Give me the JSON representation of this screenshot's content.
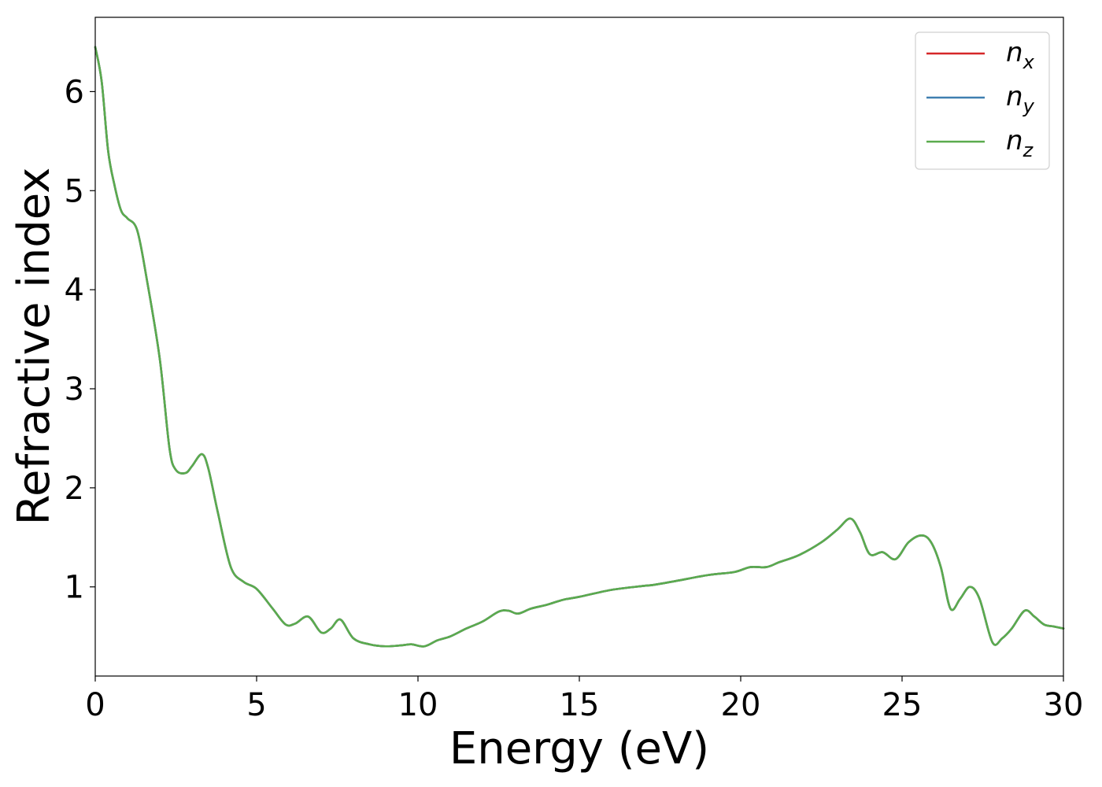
{
  "chart_data": {
    "type": "line",
    "xlabel": "Energy (eV)",
    "ylabel": "Refractive index",
    "xlim": [
      0,
      30
    ],
    "ylim": [
      0.1,
      6.75
    ],
    "xticks": [
      0,
      5,
      10,
      15,
      20,
      25,
      30
    ],
    "yticks": [
      1,
      2,
      3,
      4,
      5,
      6
    ],
    "grid": false,
    "legend_position": "top-right",
    "series": [
      {
        "name": "n_x",
        "legend_base": "n",
        "legend_sub": "x",
        "color": "#d62728",
        "points": [
          [
            0,
            6.45
          ],
          [
            0.2,
            6.1
          ],
          [
            0.4,
            5.4
          ],
          [
            0.6,
            5.05
          ],
          [
            0.8,
            4.8
          ],
          [
            1.0,
            4.72
          ],
          [
            1.3,
            4.6
          ],
          [
            1.6,
            4.1
          ],
          [
            2.0,
            3.3
          ],
          [
            2.3,
            2.4
          ],
          [
            2.5,
            2.18
          ],
          [
            2.8,
            2.15
          ],
          [
            3.0,
            2.22
          ],
          [
            3.3,
            2.34
          ],
          [
            3.5,
            2.2
          ],
          [
            3.8,
            1.75
          ],
          [
            4.2,
            1.2
          ],
          [
            4.6,
            1.05
          ],
          [
            5.0,
            0.98
          ],
          [
            5.5,
            0.78
          ],
          [
            5.9,
            0.62
          ],
          [
            6.2,
            0.63
          ],
          [
            6.6,
            0.7
          ],
          [
            7.0,
            0.54
          ],
          [
            7.3,
            0.58
          ],
          [
            7.6,
            0.67
          ],
          [
            8.0,
            0.48
          ],
          [
            8.5,
            0.42
          ],
          [
            9.0,
            0.4
          ],
          [
            9.5,
            0.41
          ],
          [
            9.8,
            0.42
          ],
          [
            10.2,
            0.4
          ],
          [
            10.6,
            0.46
          ],
          [
            11.0,
            0.5
          ],
          [
            11.5,
            0.58
          ],
          [
            12.0,
            0.65
          ],
          [
            12.5,
            0.75
          ],
          [
            12.8,
            0.76
          ],
          [
            13.1,
            0.73
          ],
          [
            13.5,
            0.78
          ],
          [
            14.0,
            0.82
          ],
          [
            14.5,
            0.87
          ],
          [
            15.0,
            0.9
          ],
          [
            16.0,
            0.97
          ],
          [
            17.0,
            1.01
          ],
          [
            17.3,
            1.02
          ],
          [
            18.0,
            1.06
          ],
          [
            19.0,
            1.12
          ],
          [
            19.8,
            1.15
          ],
          [
            20.3,
            1.2
          ],
          [
            20.8,
            1.2
          ],
          [
            21.2,
            1.25
          ],
          [
            21.8,
            1.32
          ],
          [
            22.5,
            1.45
          ],
          [
            23.0,
            1.58
          ],
          [
            23.4,
            1.69
          ],
          [
            23.7,
            1.55
          ],
          [
            24.0,
            1.33
          ],
          [
            24.4,
            1.35
          ],
          [
            24.8,
            1.28
          ],
          [
            25.2,
            1.45
          ],
          [
            25.6,
            1.52
          ],
          [
            25.9,
            1.45
          ],
          [
            26.2,
            1.2
          ],
          [
            26.5,
            0.78
          ],
          [
            26.8,
            0.88
          ],
          [
            27.1,
            1.0
          ],
          [
            27.4,
            0.88
          ],
          [
            27.8,
            0.44
          ],
          [
            28.1,
            0.48
          ],
          [
            28.4,
            0.58
          ],
          [
            28.8,
            0.76
          ],
          [
            29.1,
            0.7
          ],
          [
            29.4,
            0.62
          ],
          [
            29.7,
            0.6
          ],
          [
            30.0,
            0.58
          ]
        ]
      },
      {
        "name": "n_y",
        "legend_base": "n",
        "legend_sub": "y",
        "color": "#3f7fb0",
        "points": [
          [
            0,
            6.45
          ],
          [
            0.2,
            6.1
          ],
          [
            0.4,
            5.4
          ],
          [
            0.6,
            5.05
          ],
          [
            0.8,
            4.8
          ],
          [
            1.0,
            4.72
          ],
          [
            1.3,
            4.6
          ],
          [
            1.6,
            4.1
          ],
          [
            2.0,
            3.3
          ],
          [
            2.3,
            2.4
          ],
          [
            2.5,
            2.18
          ],
          [
            2.8,
            2.15
          ],
          [
            3.0,
            2.22
          ],
          [
            3.3,
            2.34
          ],
          [
            3.5,
            2.2
          ],
          [
            3.8,
            1.75
          ],
          [
            4.2,
            1.2
          ],
          [
            4.6,
            1.05
          ],
          [
            5.0,
            0.98
          ],
          [
            5.5,
            0.78
          ],
          [
            5.9,
            0.62
          ],
          [
            6.2,
            0.63
          ],
          [
            6.6,
            0.7
          ],
          [
            7.0,
            0.54
          ],
          [
            7.3,
            0.58
          ],
          [
            7.6,
            0.67
          ],
          [
            8.0,
            0.48
          ],
          [
            8.5,
            0.42
          ],
          [
            9.0,
            0.4
          ],
          [
            9.5,
            0.41
          ],
          [
            9.8,
            0.42
          ],
          [
            10.2,
            0.4
          ],
          [
            10.6,
            0.46
          ],
          [
            11.0,
            0.5
          ],
          [
            11.5,
            0.58
          ],
          [
            12.0,
            0.65
          ],
          [
            12.5,
            0.75
          ],
          [
            12.8,
            0.76
          ],
          [
            13.1,
            0.73
          ],
          [
            13.5,
            0.78
          ],
          [
            14.0,
            0.82
          ],
          [
            14.5,
            0.87
          ],
          [
            15.0,
            0.9
          ],
          [
            16.0,
            0.97
          ],
          [
            17.0,
            1.01
          ],
          [
            17.3,
            1.02
          ],
          [
            18.0,
            1.06
          ],
          [
            19.0,
            1.12
          ],
          [
            19.8,
            1.15
          ],
          [
            20.3,
            1.2
          ],
          [
            20.8,
            1.2
          ],
          [
            21.2,
            1.25
          ],
          [
            21.8,
            1.32
          ],
          [
            22.5,
            1.45
          ],
          [
            23.0,
            1.58
          ],
          [
            23.4,
            1.69
          ],
          [
            23.7,
            1.55
          ],
          [
            24.0,
            1.33
          ],
          [
            24.4,
            1.35
          ],
          [
            24.8,
            1.28
          ],
          [
            25.2,
            1.45
          ],
          [
            25.6,
            1.52
          ],
          [
            25.9,
            1.45
          ],
          [
            26.2,
            1.2
          ],
          [
            26.5,
            0.78
          ],
          [
            26.8,
            0.88
          ],
          [
            27.1,
            1.0
          ],
          [
            27.4,
            0.88
          ],
          [
            27.8,
            0.44
          ],
          [
            28.1,
            0.48
          ],
          [
            28.4,
            0.58
          ],
          [
            28.8,
            0.76
          ],
          [
            29.1,
            0.7
          ],
          [
            29.4,
            0.62
          ],
          [
            29.7,
            0.6
          ],
          [
            30.0,
            0.58
          ]
        ]
      },
      {
        "name": "n_z",
        "legend_base": "n",
        "legend_sub": "z",
        "color": "#5aab4e",
        "points": [
          [
            0,
            6.45
          ],
          [
            0.2,
            6.1
          ],
          [
            0.4,
            5.4
          ],
          [
            0.6,
            5.05
          ],
          [
            0.8,
            4.8
          ],
          [
            1.0,
            4.72
          ],
          [
            1.3,
            4.6
          ],
          [
            1.6,
            4.1
          ],
          [
            2.0,
            3.3
          ],
          [
            2.3,
            2.4
          ],
          [
            2.5,
            2.18
          ],
          [
            2.8,
            2.15
          ],
          [
            3.0,
            2.22
          ],
          [
            3.3,
            2.34
          ],
          [
            3.5,
            2.2
          ],
          [
            3.8,
            1.75
          ],
          [
            4.2,
            1.2
          ],
          [
            4.6,
            1.05
          ],
          [
            5.0,
            0.98
          ],
          [
            5.5,
            0.78
          ],
          [
            5.9,
            0.62
          ],
          [
            6.2,
            0.63
          ],
          [
            6.6,
            0.7
          ],
          [
            7.0,
            0.54
          ],
          [
            7.3,
            0.58
          ],
          [
            7.6,
            0.67
          ],
          [
            8.0,
            0.48
          ],
          [
            8.5,
            0.42
          ],
          [
            9.0,
            0.4
          ],
          [
            9.5,
            0.41
          ],
          [
            9.8,
            0.42
          ],
          [
            10.2,
            0.4
          ],
          [
            10.6,
            0.46
          ],
          [
            11.0,
            0.5
          ],
          [
            11.5,
            0.58
          ],
          [
            12.0,
            0.65
          ],
          [
            12.5,
            0.75
          ],
          [
            12.8,
            0.76
          ],
          [
            13.1,
            0.73
          ],
          [
            13.5,
            0.78
          ],
          [
            14.0,
            0.82
          ],
          [
            14.5,
            0.87
          ],
          [
            15.0,
            0.9
          ],
          [
            16.0,
            0.97
          ],
          [
            17.0,
            1.01
          ],
          [
            17.3,
            1.02
          ],
          [
            18.0,
            1.06
          ],
          [
            19.0,
            1.12
          ],
          [
            19.8,
            1.15
          ],
          [
            20.3,
            1.2
          ],
          [
            20.8,
            1.2
          ],
          [
            21.2,
            1.25
          ],
          [
            21.8,
            1.32
          ],
          [
            22.5,
            1.45
          ],
          [
            23.0,
            1.58
          ],
          [
            23.4,
            1.69
          ],
          [
            23.7,
            1.55
          ],
          [
            24.0,
            1.33
          ],
          [
            24.4,
            1.35
          ],
          [
            24.8,
            1.28
          ],
          [
            25.2,
            1.45
          ],
          [
            25.6,
            1.52
          ],
          [
            25.9,
            1.45
          ],
          [
            26.2,
            1.2
          ],
          [
            26.5,
            0.78
          ],
          [
            26.8,
            0.88
          ],
          [
            27.1,
            1.0
          ],
          [
            27.4,
            0.88
          ],
          [
            27.8,
            0.44
          ],
          [
            28.1,
            0.48
          ],
          [
            28.4,
            0.58
          ],
          [
            28.8,
            0.76
          ],
          [
            29.1,
            0.7
          ],
          [
            29.4,
            0.62
          ],
          [
            29.7,
            0.6
          ],
          [
            30.0,
            0.58
          ]
        ]
      }
    ]
  }
}
